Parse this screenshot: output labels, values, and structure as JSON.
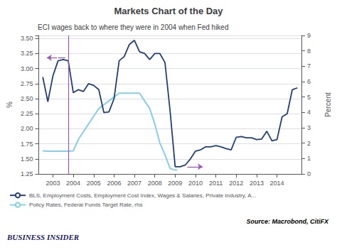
{
  "chart_data": {
    "type": "line",
    "title": "Markets Chart of the Day",
    "subtitle": "ECI wages back to where they were in 2004 when Fed hiked",
    "ylabel": "%",
    "y2label": "Percent",
    "xlim": [
      2002.3,
      2015.2
    ],
    "xticks": [
      2003,
      2004,
      2005,
      2006,
      2007,
      2008,
      2009,
      2010,
      2011,
      2012,
      2013,
      2014
    ],
    "ylim": [
      1.25,
      3.55
    ],
    "yticks": [
      1.25,
      {
        "value": 1.5,
        "label": "1.50"
      },
      1.75,
      {
        "value": 2.0,
        "label": "2.00"
      },
      2.25,
      {
        "value": 2.5,
        "label": "2.50"
      },
      2.75,
      {
        "value": 3.0,
        "label": "3.00"
      },
      3.25,
      {
        "value": 3.5,
        "label": "3.50"
      }
    ],
    "y2lim": [
      0,
      9
    ],
    "y2ticks": [
      0,
      1,
      2,
      3,
      4,
      5,
      6,
      7,
      8,
      9
    ],
    "grid": true,
    "legend": "bottom",
    "series": [
      {
        "name": "BLS, Employment Costs, Employment Cost Index, Wages & Salaries, Private Industry, A...",
        "color": "#1f3f7a",
        "x": [
          2002.5,
          2002.75,
          2003.0,
          2003.25,
          2003.5,
          2003.75,
          2004.0,
          2004.25,
          2004.5,
          2004.75,
          2005.0,
          2005.25,
          2005.5,
          2005.75,
          2006.0,
          2006.25,
          2006.5,
          2006.75,
          2007.0,
          2007.25,
          2007.5,
          2007.75,
          2008.0,
          2008.25,
          2008.5,
          2008.75,
          2009.0,
          2009.25,
          2009.5,
          2009.75,
          2010.0,
          2010.25,
          2010.5,
          2010.75,
          2011.0,
          2011.25,
          2011.5,
          2011.75,
          2012.0,
          2012.25,
          2012.5,
          2012.75,
          2013.0,
          2013.25,
          2013.5,
          2013.75,
          2014.0,
          2014.25,
          2014.5,
          2014.75,
          2015.0
        ],
        "values": [
          2.86,
          2.45,
          2.88,
          3.13,
          3.15,
          3.13,
          2.6,
          2.65,
          2.62,
          2.75,
          2.72,
          2.65,
          2.27,
          2.28,
          2.5,
          3.13,
          3.2,
          3.4,
          3.47,
          3.28,
          3.25,
          3.15,
          3.25,
          3.25,
          3.1,
          2.3,
          1.37,
          1.37,
          1.4,
          1.5,
          1.63,
          1.65,
          1.7,
          1.7,
          1.72,
          1.7,
          1.67,
          1.65,
          1.86,
          1.87,
          1.85,
          1.85,
          1.82,
          1.83,
          1.96,
          1.8,
          1.82,
          2.2,
          2.25,
          2.65,
          2.68
        ]
      },
      {
        "name": "Policy Rates, Federal Funds Target Rate, rhs",
        "color": "#87ceeb",
        "axis": "y2",
        "x": [
          2002.5,
          2002.75,
          2003.0,
          2003.25,
          2003.5,
          2003.75,
          2004.0,
          2004.25,
          2004.5,
          2004.75,
          2005.0,
          2005.25,
          2005.5,
          2005.75,
          2006.0,
          2006.25,
          2006.5,
          2006.75,
          2007.0,
          2007.25,
          2007.5,
          2007.75,
          2008.0,
          2008.25,
          2008.5,
          2008.75,
          2009.0,
          2009.1
        ],
        "values": [
          1.5,
          1.48,
          1.48,
          1.48,
          1.48,
          1.48,
          1.5,
          2.25,
          2.75,
          3.25,
          3.75,
          4.25,
          4.5,
          4.75,
          5.0,
          5.25,
          5.25,
          5.25,
          5.25,
          5.25,
          4.75,
          4.25,
          3.25,
          2.0,
          1.25,
          0.35,
          0.25,
          0.25
        ]
      }
    ],
    "annotations": [
      {
        "type": "vline",
        "x": 2003.75,
        "color": "#9b59b6"
      },
      {
        "type": "arrow",
        "from": [
          2003.2,
          3.18
        ],
        "to": [
          2002.7,
          3.18
        ],
        "color": "#9b59b6"
      },
      {
        "type": "segment",
        "from": [
          2003.25,
          3.18
        ],
        "to": [
          2003.6,
          3.18
        ],
        "color": "#9b59b6"
      },
      {
        "type": "arrow",
        "from": [
          2009.6,
          1.37
        ],
        "to": [
          2010.35,
          1.37
        ],
        "color": "#9b59b6"
      },
      {
        "type": "text",
        "text": "Source: Macrobond, CitiFX"
      },
      {
        "type": "text",
        "text": "BUSINESS INSIDER"
      }
    ]
  }
}
